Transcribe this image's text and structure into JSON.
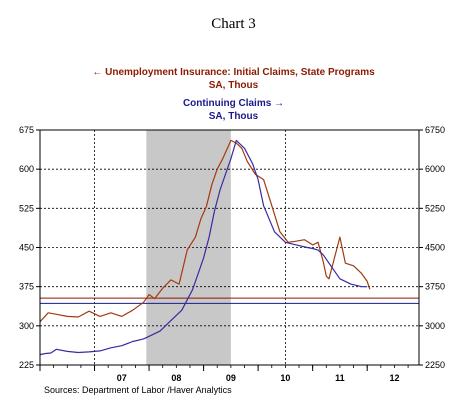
{
  "chart_data": {
    "type": "line",
    "title": "Chart 3",
    "source": "Sources:  Department of Labor /Haver Analytics",
    "legend": [
      {
        "arrow": "←",
        "label": "Unemployment Insurance: Initial Claims, State Programs",
        "units": "SA, Thous"
      },
      {
        "label": "Continuing Claims",
        "arrow": "→",
        "units": "SA, Thous"
      }
    ],
    "x_ticks": [
      "07",
      "08",
      "09",
      "10",
      "11",
      "12"
    ],
    "xlim": [
      2006.0,
      2012.95
    ],
    "y_left": {
      "ticks": [
        "225",
        "300",
        "375",
        "450",
        "525",
        "600",
        "675"
      ],
      "range": [
        225,
        675
      ]
    },
    "y_right": {
      "ticks": [
        "2250",
        "3000",
        "3750",
        "4500",
        "5250",
        "6000",
        "6750"
      ],
      "range": [
        2250,
        6750
      ]
    },
    "recession": [
      2007.95,
      2009.5
    ],
    "reference_lines": [
      {
        "axis": "left",
        "value": 353,
        "color": "#8b1a00"
      },
      {
        "axis": "right",
        "value": 3430,
        "color": "#1a1a8c"
      }
    ],
    "series": [
      {
        "axis": "left",
        "color": "#a33a10",
        "x": [
          2006.0,
          2006.15,
          2006.3,
          2006.5,
          2006.7,
          2006.9,
          2007.1,
          2007.3,
          2007.5,
          2007.7,
          2007.9,
          2008.0,
          2008.1,
          2008.25,
          2008.4,
          2008.55,
          2008.7,
          2008.85,
          2008.95,
          2009.05,
          2009.15,
          2009.25,
          2009.35,
          2009.5,
          2009.6,
          2009.7,
          2009.8,
          2009.95,
          2010.1,
          2010.25,
          2010.4,
          2010.55,
          2010.7,
          2010.85,
          2011.0,
          2011.1,
          2011.2,
          2011.25,
          2011.3,
          2011.35,
          2011.5,
          2011.6,
          2011.75,
          2011.9,
          2012.0,
          2012.05
        ],
        "y": [
          308,
          325,
          322,
          318,
          317,
          328,
          318,
          325,
          318,
          330,
          345,
          360,
          352,
          372,
          388,
          380,
          445,
          470,
          505,
          528,
          570,
          600,
          620,
          655,
          650,
          640,
          615,
          590,
          580,
          530,
          480,
          460,
          462,
          465,
          455,
          460,
          420,
          395,
          390,
          410,
          470,
          420,
          415,
          400,
          385,
          370
        ]
      },
      {
        "axis": "right",
        "color": "#3a2aa0",
        "x": [
          2006.0,
          2006.1,
          2006.2,
          2006.3,
          2006.5,
          2006.7,
          2006.9,
          2007.1,
          2007.3,
          2007.5,
          2007.7,
          2007.9,
          2008.0,
          2008.2,
          2008.4,
          2008.6,
          2008.8,
          2009.0,
          2009.1,
          2009.2,
          2009.3,
          2009.4,
          2009.5,
          2009.6,
          2009.75,
          2009.9,
          2010.0,
          2010.1,
          2010.3,
          2010.5,
          2010.7,
          2010.9,
          2011.0,
          2011.1,
          2011.2,
          2011.3,
          2011.5,
          2011.7,
          2011.9,
          2012.0
        ],
        "y": [
          2450,
          2470,
          2480,
          2550,
          2510,
          2490,
          2500,
          2520,
          2580,
          2620,
          2700,
          2750,
          2800,
          2900,
          3100,
          3300,
          3700,
          4300,
          4700,
          5200,
          5600,
          5900,
          6200,
          6550,
          6400,
          6100,
          5800,
          5300,
          4800,
          4600,
          4550,
          4500,
          4480,
          4450,
          4350,
          4200,
          3900,
          3800,
          3750,
          3750
        ]
      }
    ]
  }
}
